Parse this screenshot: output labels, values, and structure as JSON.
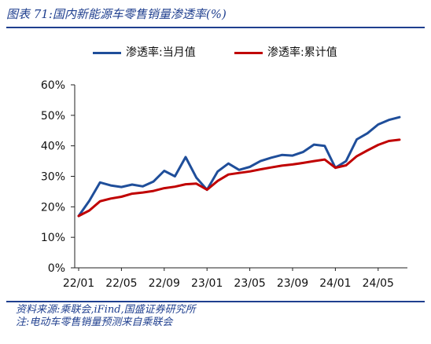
{
  "header": {
    "title": "图表 71:国内新能源车零售销量渗透率(%)"
  },
  "colors": {
    "accent": "#1f3f8f",
    "series_blue": "#1f4e9a",
    "series_red": "#c00000"
  },
  "chart_data": {
    "type": "line",
    "title": "",
    "xlabel": "",
    "ylabel": "",
    "ylim": [
      0,
      60
    ],
    "yticks": [
      "0%",
      "10%",
      "20%",
      "30%",
      "40%",
      "50%",
      "60%"
    ],
    "xtick_labels": [
      "22/01",
      "22/05",
      "22/09",
      "23/01",
      "23/05",
      "23/09",
      "24/01",
      "24/05"
    ],
    "legend_placement": "top",
    "grid": false,
    "x": [
      "22/01",
      "22/02",
      "22/03",
      "22/04",
      "22/05",
      "22/06",
      "22/07",
      "22/08",
      "22/09",
      "22/10",
      "22/11",
      "22/12",
      "23/01",
      "23/02",
      "23/03",
      "23/04",
      "23/05",
      "23/06",
      "23/07",
      "23/08",
      "23/09",
      "23/10",
      "23/11",
      "23/12",
      "24/01",
      "24/02",
      "24/03",
      "24/04",
      "24/05",
      "24/06",
      "24/07"
    ],
    "series": [
      {
        "name": "渗透率:当月值",
        "color": "#1f4e9a",
        "values": [
          17.0,
          22.0,
          28.0,
          27.0,
          26.5,
          27.3,
          26.7,
          28.3,
          31.8,
          30.0,
          36.3,
          29.6,
          25.6,
          31.6,
          34.2,
          32.1,
          33.1,
          35.0,
          36.1,
          37.0,
          36.8,
          38.0,
          40.4,
          40.0,
          32.8,
          35.0,
          42.1,
          44.1,
          47.0,
          48.5,
          49.4
        ]
      },
      {
        "name": "渗透率:累计值",
        "color": "#c00000",
        "values": [
          17.0,
          18.8,
          21.8,
          22.7,
          23.3,
          24.3,
          24.7,
          25.2,
          26.1,
          26.6,
          27.4,
          27.6,
          25.6,
          28.5,
          30.6,
          31.1,
          31.6,
          32.3,
          32.9,
          33.5,
          33.9,
          34.4,
          35.0,
          35.5,
          32.8,
          33.6,
          36.6,
          38.5,
          40.3,
          41.6,
          42.0
        ]
      }
    ]
  },
  "footer": {
    "source": "资料来源:乘联会,iFind,国盛证券研究所",
    "note": "注:电动车零售销量预测来自乘联会"
  }
}
